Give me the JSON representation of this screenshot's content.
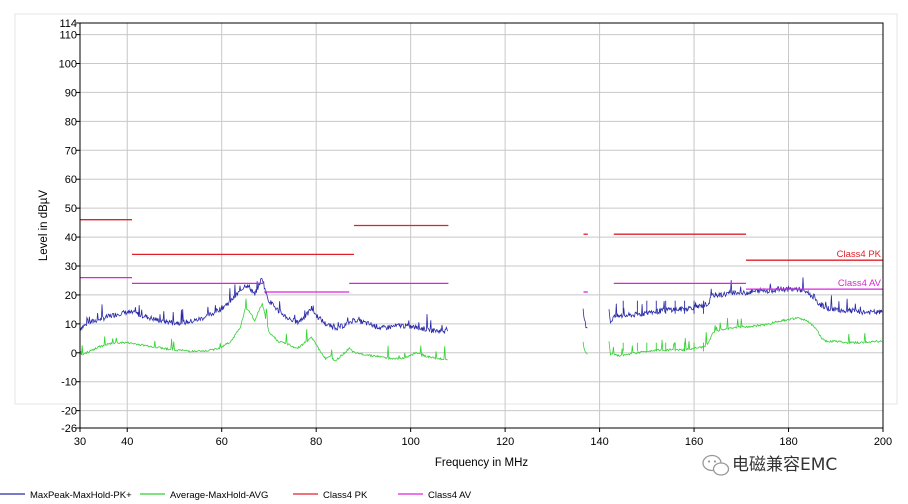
{
  "chart_data": {
    "type": "line",
    "xlabel": "Frequency in MHz",
    "ylabel": "Level in dBµV",
    "xlim": [
      30,
      200
    ],
    "ylim": [
      -26,
      114
    ],
    "grid": true,
    "xticks": [
      30,
      40,
      60,
      80,
      100,
      120,
      140,
      160,
      180,
      200
    ],
    "yticks": [
      -26,
      -20,
      -10,
      0,
      10,
      20,
      30,
      40,
      50,
      60,
      70,
      80,
      90,
      100,
      110,
      114
    ],
    "series": [
      {
        "name": "MaxPeak-MaxHold-PK+",
        "color": "#2a2aa8",
        "segments": [
          [
            [
              30,
              8.5
            ],
            [
              32,
              10.5
            ],
            [
              34,
              11.5
            ],
            [
              36,
              12.5
            ],
            [
              38,
              13.5
            ],
            [
              40,
              14
            ],
            [
              42,
              13.5
            ],
            [
              44,
              12.5
            ],
            [
              46,
              11.5
            ],
            [
              48,
              10.8
            ],
            [
              50,
              10.5
            ],
            [
              52,
              10.5
            ],
            [
              54,
              11
            ],
            [
              56,
              12
            ],
            [
              58,
              13.5
            ],
            [
              60,
              15.5
            ],
            [
              62,
              18
            ],
            [
              64,
              21.5
            ],
            [
              65,
              23.5
            ],
            [
              66,
              22.5
            ],
            [
              67,
              20
            ],
            [
              68,
              24
            ],
            [
              68.6,
              26
            ],
            [
              69.3,
              21
            ],
            [
              70,
              18
            ],
            [
              72,
              14.5
            ],
            [
              74,
              12
            ],
            [
              76,
              10.5
            ],
            [
              78,
              13
            ],
            [
              79,
              15.5
            ],
            [
              80,
              13
            ],
            [
              82,
              10
            ],
            [
              84,
              8.5
            ],
            [
              86,
              9.5
            ],
            [
              88,
              11.5
            ],
            [
              90,
              10.5
            ],
            [
              92,
              9.5
            ],
            [
              94,
              8.5
            ],
            [
              96,
              9
            ],
            [
              98,
              9.5
            ],
            [
              100,
              9
            ],
            [
              102,
              8.5
            ],
            [
              104,
              8
            ],
            [
              106,
              7.5
            ],
            [
              107.8,
              7.5
            ]
          ],
          [
            [
              136.5,
              14.5
            ],
            [
              136.8,
              11
            ],
            [
              137.1,
              9.5
            ],
            [
              137.4,
              8.5
            ]
          ],
          [
            [
              142,
              15.5
            ],
            [
              142.3,
              10.5
            ],
            [
              143,
              12.5
            ],
            [
              145,
              12.8
            ],
            [
              147,
              13
            ],
            [
              149,
              13.5
            ],
            [
              151,
              14
            ],
            [
              153,
              14.5
            ],
            [
              155,
              15
            ],
            [
              157,
              15
            ],
            [
              159,
              15.5
            ],
            [
              161,
              16
            ],
            [
              163,
              17
            ],
            [
              164,
              20
            ],
            [
              166,
              20
            ],
            [
              168,
              21
            ],
            [
              170,
              20.5
            ],
            [
              172,
              21
            ],
            [
              174,
              21.5
            ],
            [
              176,
              21.5
            ],
            [
              178,
              22
            ],
            [
              180,
              22
            ],
            [
              182,
              22
            ],
            [
              184,
              21
            ],
            [
              186,
              17.5
            ],
            [
              188,
              15.5
            ],
            [
              190,
              15
            ],
            [
              192,
              14.5
            ],
            [
              194,
              14.5
            ],
            [
              196,
              14
            ],
            [
              198,
              14
            ],
            [
              199.8,
              14
            ]
          ]
        ]
      },
      {
        "name": "Average-MaxHold-AVG",
        "color": "#33d133",
        "segments": [
          [
            [
              30,
              -1
            ],
            [
              32,
              0.5
            ],
            [
              34,
              2
            ],
            [
              36,
              3
            ],
            [
              38,
              3.5
            ],
            [
              40,
              3.5
            ],
            [
              42,
              3
            ],
            [
              44,
              2.5
            ],
            [
              46,
              2
            ],
            [
              48,
              1.5
            ],
            [
              50,
              1
            ],
            [
              52,
              0.8
            ],
            [
              54,
              0.5
            ],
            [
              56,
              0.5
            ],
            [
              58,
              1
            ],
            [
              60,
              2
            ],
            [
              62,
              4
            ],
            [
              64,
              9
            ],
            [
              65,
              15.5
            ],
            [
              66,
              14
            ],
            [
              67,
              11
            ],
            [
              68,
              15
            ],
            [
              68.6,
              17
            ],
            [
              69.3,
              12
            ],
            [
              70,
              7
            ],
            [
              72,
              4
            ],
            [
              74,
              3
            ],
            [
              76,
              1.5
            ],
            [
              78,
              4
            ],
            [
              79,
              5.5
            ],
            [
              80,
              3
            ],
            [
              81,
              0
            ],
            [
              82,
              -2
            ],
            [
              83,
              -1
            ],
            [
              84,
              -3
            ],
            [
              85,
              -1.5
            ],
            [
              86,
              0
            ],
            [
              87,
              1.5
            ],
            [
              88,
              0
            ],
            [
              90,
              -0.5
            ],
            [
              92,
              -1
            ],
            [
              94,
              -1.5
            ],
            [
              96,
              -2
            ],
            [
              98,
              -2
            ],
            [
              100,
              -1
            ],
            [
              101,
              0
            ],
            [
              102,
              -0.5
            ],
            [
              104,
              -1.5
            ],
            [
              106,
              -2
            ],
            [
              107.8,
              -2.5
            ]
          ],
          [
            [
              136.5,
              3.5
            ],
            [
              136.8,
              1
            ],
            [
              137.1,
              0.2
            ],
            [
              137.4,
              -0.5
            ]
          ],
          [
            [
              142,
              4
            ],
            [
              142.3,
              -0.5
            ],
            [
              144,
              -1
            ],
            [
              146,
              -0.5
            ],
            [
              148,
              0
            ],
            [
              150,
              0.5
            ],
            [
              152,
              1
            ],
            [
              154,
              1
            ],
            [
              156,
              1
            ],
            [
              158,
              1
            ],
            [
              160,
              1.5
            ],
            [
              162,
              2
            ],
            [
              163,
              3.5
            ],
            [
              164,
              7
            ],
            [
              166,
              8
            ],
            [
              168,
              8.5
            ],
            [
              170,
              9
            ],
            [
              172,
              9
            ],
            [
              174,
              9.5
            ],
            [
              176,
              10
            ],
            [
              178,
              11
            ],
            [
              180,
              11.5
            ],
            [
              182,
              12
            ],
            [
              184,
              11
            ],
            [
              186,
              8
            ],
            [
              187,
              5
            ],
            [
              188,
              4
            ],
            [
              190,
              4
            ],
            [
              192,
              3.5
            ],
            [
              194,
              3.5
            ],
            [
              196,
              3.5
            ],
            [
              198,
              4
            ],
            [
              199.8,
              4
            ]
          ]
        ]
      },
      {
        "name": "Class4 PK",
        "color": "#e0202a",
        "segments": [
          [
            [
              30,
              46
            ],
            [
              41,
              46
            ]
          ],
          [
            [
              41,
              34
            ],
            [
              88,
              34
            ]
          ],
          [
            [
              88,
              44
            ],
            [
              108,
              44
            ]
          ],
          [
            [
              136.6,
              41
            ],
            [
              137.5,
              41
            ]
          ],
          [
            [
              143,
              41
            ],
            [
              171,
              41
            ]
          ],
          [
            [
              171,
              32
            ],
            [
              200,
              32
            ]
          ]
        ]
      },
      {
        "name": "Class4 AV",
        "color": "#e020e0",
        "segments": [
          [
            [
              30,
              26
            ],
            [
              41,
              26
            ]
          ],
          [
            [
              41,
              24
            ],
            [
              69,
              24
            ]
          ],
          [
            [
              69,
              21
            ],
            [
              87,
              21
            ]
          ],
          [
            [
              87,
              24
            ],
            [
              108,
              24
            ]
          ],
          [
            [
              136.6,
              21
            ],
            [
              137.5,
              21
            ]
          ],
          [
            [
              143,
              24
            ],
            [
              171,
              24
            ]
          ],
          [
            [
              171,
              22
            ],
            [
              200,
              22
            ]
          ]
        ]
      }
    ],
    "annotations": [
      {
        "text": "Class4 PK",
        "x": 200,
        "y": 32,
        "color": "#e0202a"
      },
      {
        "text": "Class4 AV",
        "x": 200,
        "y": 22,
        "color": "#e020e0"
      }
    ],
    "legend": {
      "position": "bottom",
      "entries": [
        "MaxPeak-MaxHold-PK+",
        "Average-MaxHold-AVG",
        "Class4 PK",
        "Class4 AV"
      ]
    }
  },
  "watermark": "电磁兼容EMC",
  "colors": {
    "grid": "#c8c8c8",
    "frame": "#000000",
    "watermark_icon": "#aaaaaa"
  }
}
